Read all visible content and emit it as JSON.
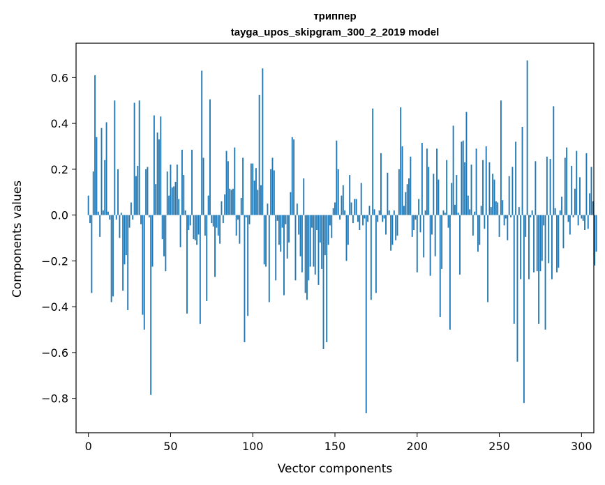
{
  "chart_data": {
    "type": "bar",
    "title": "триппер",
    "subtitle": "tayga_upos_skipgram_300_2_2019 model",
    "xlabel": "Vector components",
    "ylabel": "Components values",
    "xlim": [
      -7.5,
      307.5
    ],
    "ylim": [
      -0.95,
      0.75
    ],
    "xticks": [
      0,
      50,
      100,
      150,
      200,
      250,
      300
    ],
    "xtick_labels": [
      "0",
      "50",
      "100",
      "150",
      "200",
      "250",
      "300"
    ],
    "yticks": [
      -0.8,
      -0.6,
      -0.4,
      -0.2,
      0.0,
      0.2,
      0.4,
      0.6
    ],
    "ytick_labels": [
      "−0.8",
      "−0.6",
      "−0.4",
      "−0.2",
      "0.0",
      "0.2",
      "0.4",
      "0.6"
    ],
    "grid": false,
    "bar_color": "#1f77b4",
    "values": [
      0.085,
      -0.035,
      -0.34,
      0.19,
      0.61,
      0.34,
      0.015,
      -0.095,
      0.38,
      0.02,
      0.24,
      0.405,
      0.015,
      -0.02,
      -0.38,
      -0.355,
      0.5,
      -0.02,
      0.2,
      -0.1,
      0.01,
      -0.33,
      -0.215,
      -0.175,
      -0.415,
      -0.055,
      0.055,
      -0.02,
      0.49,
      0.17,
      0.215,
      0.5,
      -0.04,
      -0.435,
      -0.5,
      0.2,
      0.21,
      -0.01,
      -0.785,
      -0.225,
      0.435,
      0.135,
      0.36,
      0.33,
      0.43,
      -0.105,
      -0.18,
      -0.245,
      0.19,
      0.085,
      0.22,
      0.12,
      0.125,
      0.145,
      0.22,
      0.07,
      -0.14,
      0.285,
      0.175,
      0.02,
      -0.43,
      -0.065,
      -0.045,
      0.285,
      -0.105,
      -0.11,
      -0.13,
      -0.085,
      -0.475,
      0.63,
      0.25,
      -0.09,
      -0.375,
      0.085,
      0.505,
      -0.035,
      -0.05,
      -0.27,
      -0.055,
      -0.09,
      -0.125,
      0.06,
      -0.035,
      0.09,
      0.28,
      0.235,
      0.115,
      0.11,
      0.115,
      0.295,
      -0.09,
      -0.02,
      -0.125,
      0.075,
      0.25,
      -0.555,
      -0.01,
      -0.44,
      -0.04,
      0.225,
      0.225,
      0.15,
      0.205,
      0.11,
      0.525,
      0.13,
      0.64,
      -0.215,
      -0.225,
      0.05,
      -0.38,
      0.2,
      0.25,
      0.195,
      -0.285,
      -0.025,
      -0.13,
      -0.16,
      -0.055,
      -0.35,
      -0.04,
      -0.19,
      -0.12,
      0.1,
      0.34,
      0.33,
      -0.285,
      0.05,
      -0.085,
      -0.18,
      -0.25,
      0.16,
      -0.34,
      -0.37,
      -0.285,
      -0.225,
      -0.055,
      -0.225,
      -0.26,
      -0.065,
      -0.305,
      -0.12,
      -0.235,
      -0.585,
      -0.175,
      -0.555,
      -0.13,
      -0.045,
      -0.1,
      0.03,
      0.055,
      0.325,
      0.2,
      -0.02,
      0.085,
      0.13,
      0.02,
      -0.2,
      -0.13,
      0.175,
      0.055,
      -0.035,
      0.07,
      0.07,
      -0.03,
      -0.065,
      0.14,
      -0.045,
      -0.015,
      -0.865,
      -0.03,
      0.04,
      -0.37,
      0.465,
      0.025,
      -0.34,
      -0.03,
      0.02,
      0.27,
      -0.03,
      -0.015,
      -0.085,
      0.185,
      0.02,
      -0.155,
      -0.13,
      0.02,
      -0.11,
      -0.09,
      0.2,
      0.47,
      0.3,
      0.04,
      0.1,
      0.135,
      0.16,
      0.255,
      -0.095,
      -0.065,
      -0.02,
      -0.25,
      0.07,
      -0.075,
      0.315,
      -0.185,
      0.02,
      0.29,
      0.21,
      -0.265,
      -0.085,
      0.18,
      -0.18,
      0.29,
      0.155,
      -0.445,
      -0.235,
      0.02,
      0.01,
      0.24,
      -0.055,
      -0.5,
      0.14,
      0.39,
      0.045,
      0.175,
      0.01,
      -0.26,
      0.32,
      0.325,
      0.23,
      0.45,
      0.085,
      0.025,
      0.22,
      -0.09,
      0.015,
      0.29,
      -0.16,
      -0.13,
      0.04,
      0.24,
      -0.06,
      0.3,
      -0.38,
      0.23,
      0.035,
      0.18,
      0.155,
      0.06,
      0.055,
      -0.095,
      0.5,
      0.065,
      -0.045,
      -0.015,
      -0.11,
      0.17,
      -0.01,
      0.21,
      -0.475,
      0.32,
      -0.64,
      0.035,
      -0.28,
      0.385,
      -0.82,
      -0.095,
      0.675,
      -0.28,
      -0.01,
      0.02,
      -0.25,
      0.235,
      -0.245,
      -0.475,
      -0.245,
      -0.2,
      -0.045,
      -0.5,
      0.255,
      -0.21,
      0.245,
      -0.28,
      0.475,
      0.03,
      -0.25,
      -0.23,
      0.02,
      0.08,
      -0.145,
      0.25,
      0.295,
      -0.03,
      -0.085,
      0.215,
      -0.01,
      0.115,
      0.28,
      -0.045,
      0.165,
      -0.015,
      -0.025,
      -0.065,
      0.27,
      -0.06,
      0.095,
      0.21,
      0.06,
      -0.22,
      -0.16
    ]
  }
}
